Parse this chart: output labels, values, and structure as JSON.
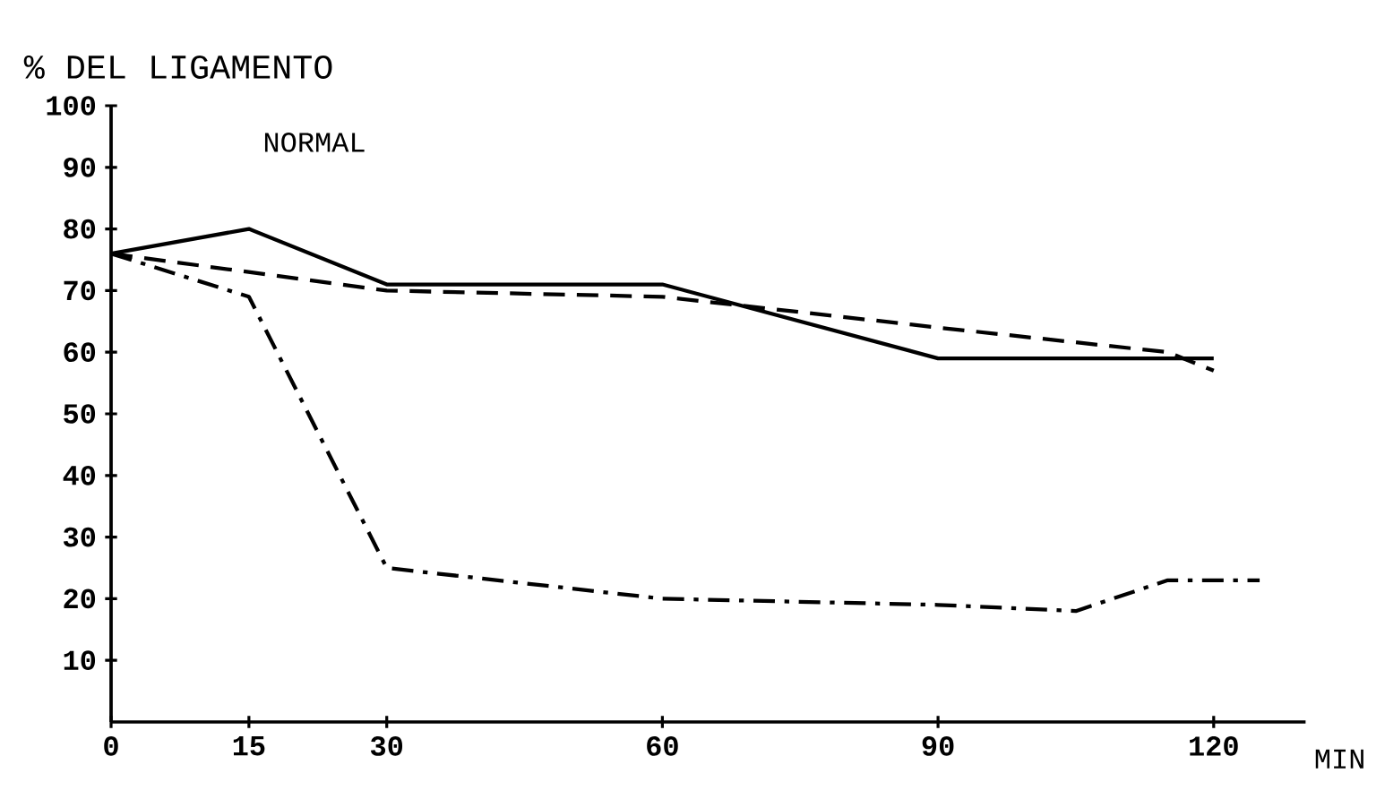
{
  "chart_data": {
    "type": "line",
    "title": "% DEL LIGAMENTO",
    "subtitle": "NORMAL",
    "xlabel": "MIN",
    "xlim": [
      0,
      130
    ],
    "xticks": [
      0,
      15,
      30,
      60,
      90,
      120
    ],
    "ylim": [
      0,
      100
    ],
    "yticks": [
      10,
      20,
      30,
      40,
      50,
      60,
      70,
      80,
      90,
      100
    ],
    "grid": false,
    "marker": "none",
    "series": [
      {
        "color": "#000000",
        "line_style": "solid",
        "x": [
          0,
          15,
          30,
          60,
          90,
          105,
          120
        ],
        "values": [
          76,
          80,
          71,
          71,
          59,
          59,
          59
        ]
      },
      {
        "color": "#000000",
        "line_style": "dashed",
        "x": [
          0,
          30,
          60,
          90,
          115,
          120
        ],
        "values": [
          76,
          70,
          69,
          64,
          60,
          57
        ]
      },
      {
        "color": "#000000",
        "line_style": "dashdot",
        "x": [
          0,
          15,
          30,
          60,
          90,
          105,
          115,
          125
        ],
        "values": [
          76,
          69,
          25,
          20,
          19,
          18,
          23,
          23
        ]
      }
    ]
  }
}
